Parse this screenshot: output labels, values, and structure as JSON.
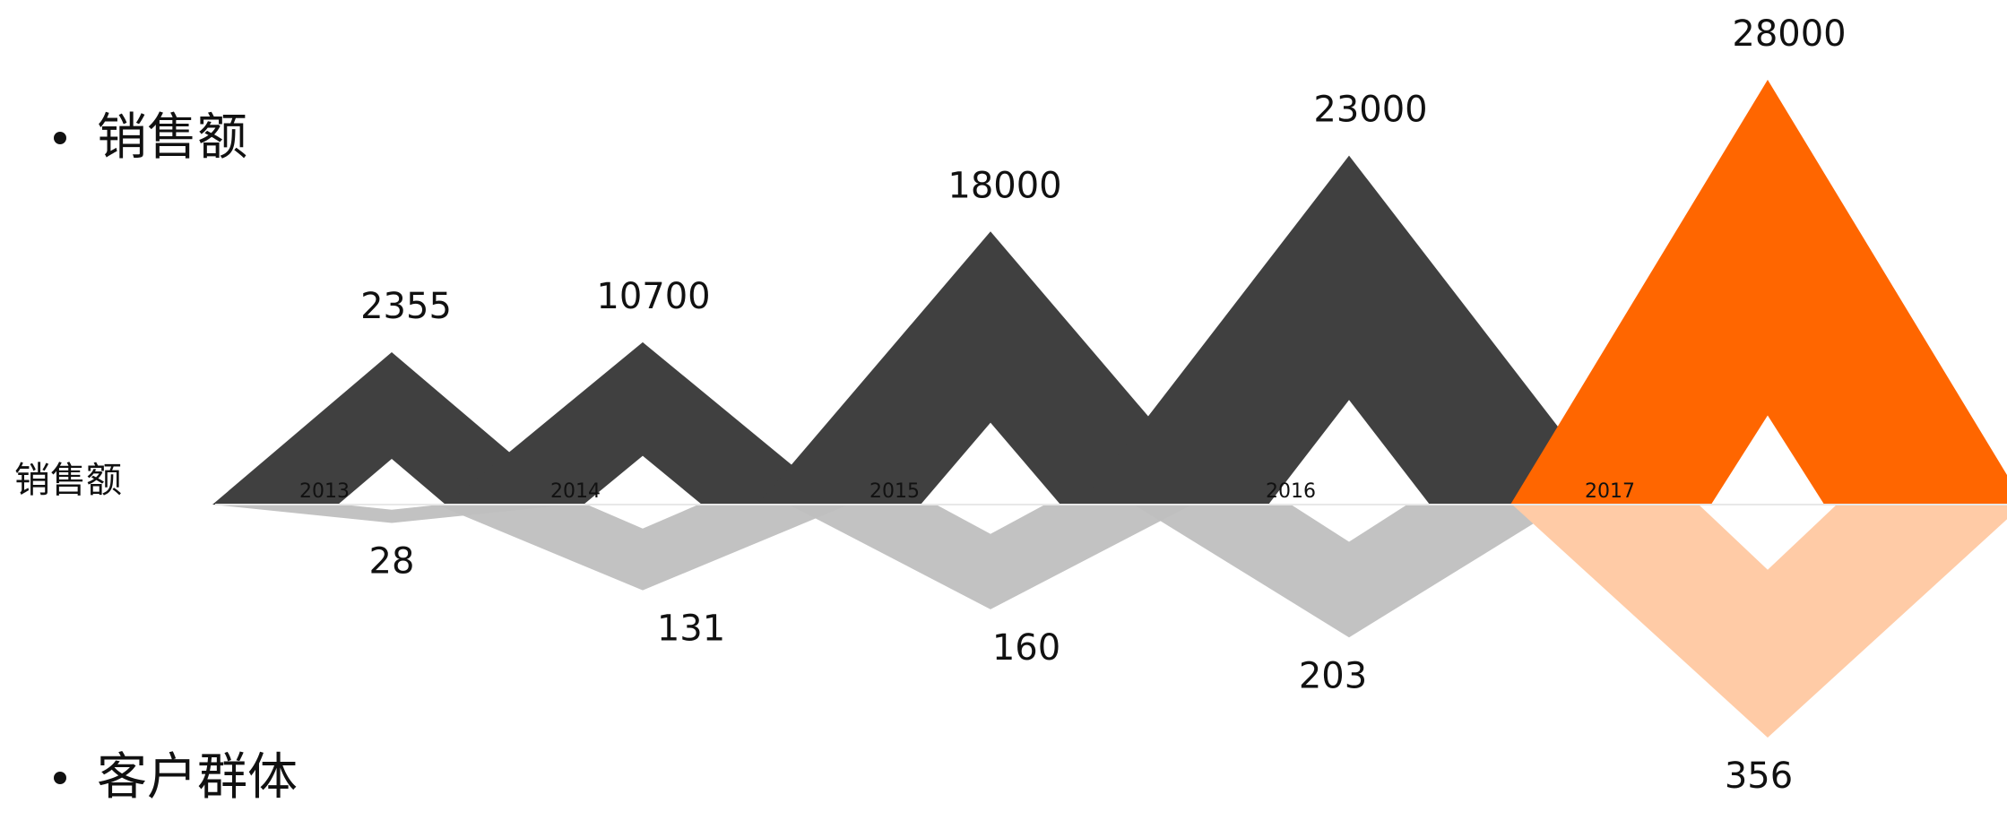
{
  "legend": {
    "top_label": "销售额",
    "bottom_label": "客户群体"
  },
  "row_label": "销售额",
  "colors": {
    "sales": "#404040",
    "sales_highlight": "#ff6600",
    "customers": "#bfbfbf",
    "customers_highlight": "#ffcba6"
  },
  "chart_data": {
    "type": "area",
    "categories": [
      "2013",
      "2014",
      "2015",
      "2016",
      "2017"
    ],
    "series": [
      {
        "name": "销售额",
        "values": [
          2355,
          10700,
          18000,
          23000,
          28000
        ]
      },
      {
        "name": "客户群体",
        "values": [
          28,
          131,
          160,
          203,
          356
        ]
      }
    ],
    "highlight_category": "2017",
    "grid": false
  }
}
